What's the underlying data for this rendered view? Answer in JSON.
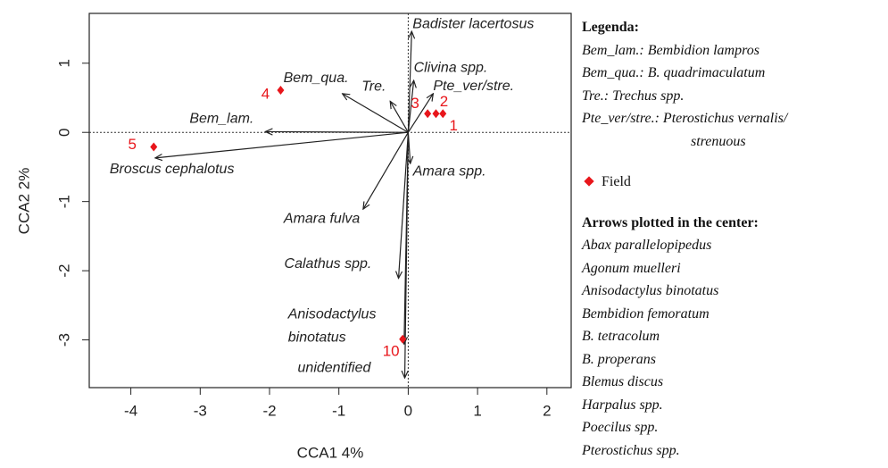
{
  "chart_data": {
    "type": "biplot",
    "x_label": "CCA1 4%",
    "y_label": "CCA2 2%",
    "xlim": [
      -4.6,
      2.35
    ],
    "ylim": [
      -3.69,
      1.72
    ],
    "xticks": [
      -4,
      -3,
      -2,
      -1,
      0,
      1,
      2
    ],
    "yticks": [
      -3,
      -2,
      -1,
      0,
      1
    ],
    "hline": 0,
    "vline": 0,
    "arrows": {
      "color": "#222222",
      "labels": [
        "Badister lacertosus",
        "Clivina spp.",
        "Pte_ver/stre.",
        "Tre.",
        "Bem_qua.",
        "Bem_lam.",
        "Broscus cephalotus",
        "Amara spp.",
        "Amara fulva",
        "Calathus spp.",
        [
          "Anisodactylus",
          "binotatus"
        ],
        "unidentified"
      ],
      "x": [
        0.05,
        0.08,
        0.36,
        -0.26,
        -0.95,
        -2.06,
        -3.65,
        0.03,
        -0.65,
        -0.14,
        -0.06,
        -0.05
      ],
      "y": [
        1.46,
        0.75,
        0.56,
        0.45,
        0.56,
        0.01,
        -0.37,
        -0.45,
        -1.11,
        -2.11,
        -3.06,
        -3.55
      ]
    },
    "sites": {
      "name": "Field",
      "color": "#e8161b",
      "labels": [
        "5",
        "4",
        "3",
        "2",
        "1",
        "10"
      ],
      "x": [
        -3.67,
        -1.84,
        0.28,
        0.4,
        0.5,
        -0.08
      ],
      "y": [
        -0.21,
        0.61,
        0.27,
        0.27,
        0.27,
        -2.99
      ]
    }
  },
  "legend_panel": {
    "title": "Legenda:",
    "lines": [
      "Bem_lam.: Bembidion lampros",
      "Bem_qua.: B. quadrimaculatum",
      "Tre.: Trechus spp.",
      "Pte_ver/stre.: Pterostichus vernalis/",
      "strenuous"
    ],
    "center_title": "Arrows plotted in the center:",
    "center_list": [
      "Abax parallelopipedus",
      "Agonum muelleri",
      "Anisodactylus binotatus",
      "Bembidion femoratum",
      "B. tetracolum",
      "B. properans",
      "Blemus discus",
      "Harpalus spp.",
      "Poecilus spp.",
      "Pterostichus spp."
    ]
  }
}
